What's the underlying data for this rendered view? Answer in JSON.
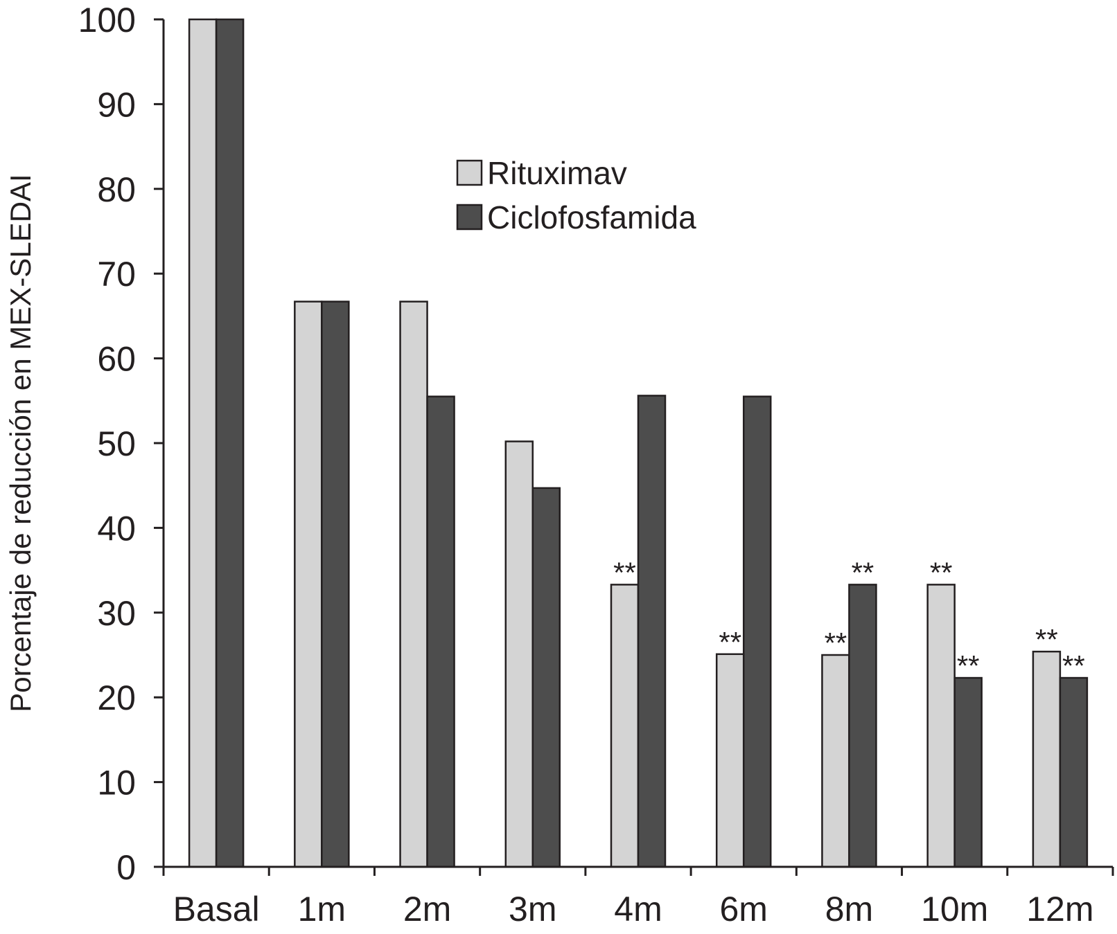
{
  "chart_data": {
    "type": "bar",
    "title": "",
    "xlabel": "",
    "ylabel": "Porcentaje de reducción en MEX-SLEDAI",
    "ylim": [
      0,
      100
    ],
    "yticks": [
      0,
      10,
      20,
      30,
      40,
      50,
      60,
      70,
      80,
      90,
      100
    ],
    "categories": [
      "Basal",
      "1m",
      "2m",
      "3m",
      "4m",
      "6m",
      "8m",
      "10m",
      "12m"
    ],
    "series": [
      {
        "name": "Rituximav",
        "color": "#d4d4d4",
        "values": [
          100,
          66.7,
          66.7,
          50.2,
          33.3,
          25.1,
          25.0,
          33.3,
          25.4
        ],
        "significance": [
          "",
          "",
          "",
          "",
          "**",
          "**",
          "**",
          "**",
          "**"
        ]
      },
      {
        "name": "Ciclofosfamida",
        "color": "#4d4d4d",
        "values": [
          100,
          66.7,
          55.5,
          44.7,
          55.6,
          55.5,
          33.3,
          22.3,
          22.3
        ],
        "significance": [
          "",
          "",
          "",
          "",
          "",
          "",
          "**",
          "**",
          "**"
        ]
      }
    ],
    "legend_position": "top-center",
    "grid": false
  }
}
